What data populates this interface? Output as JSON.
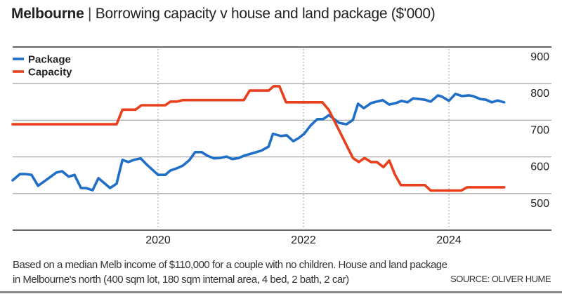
{
  "title": {
    "bold": "Melbourne",
    "separator": "|",
    "text": "Borrowing capacity v house and land package ($'000)"
  },
  "footnote": {
    "line1": "Based on a median Melb income of $110,000 for a couple with no children. House and land package",
    "line2": "in Melbourne's north (400 sqm lot, 180 sqm internal area, 4 bed, 2 bath, 2 car)",
    "source": "SOURCE: OLIVER HUME"
  },
  "chart_data": {
    "type": "line",
    "title": "Melbourne | Borrowing capacity v house and land package ($'000)",
    "xlim": [
      2018.0,
      2024.95
    ],
    "ylim": [
      400,
      900
    ],
    "x_ticks": [
      2020,
      2022,
      2024
    ],
    "x_tick_labels": [
      "2020",
      "2022",
      "2024"
    ],
    "y_ticks": [
      900,
      800,
      700,
      600,
      500
    ],
    "y_tick_labels": [
      "900",
      "800",
      "700",
      "600",
      "500"
    ],
    "y_axis_side": "right",
    "grid": "horizontal solid, vertical dotted at year ticks",
    "legend": "top-left",
    "series": [
      {
        "name": "Package",
        "color": "#1f6fc8",
        "x": [
          2018.0,
          2018.1,
          2018.18,
          2018.26,
          2018.35,
          2018.51,
          2018.6,
          2018.68,
          2018.77,
          2018.85,
          2018.94,
          2019.01,
          2019.1,
          2019.18,
          2019.34,
          2019.43,
          2019.51,
          2019.59,
          2019.67,
          2019.76,
          2019.86,
          2020.0,
          2020.1,
          2020.17,
          2020.26,
          2020.34,
          2020.43,
          2020.51,
          2020.6,
          2020.68,
          2020.77,
          2020.85,
          2020.94,
          2021.02,
          2021.11,
          2021.18,
          2021.42,
          2021.52,
          2021.58,
          2021.69,
          2021.77,
          2021.86,
          2021.93,
          2022.01,
          2022.1,
          2022.19,
          2022.27,
          2022.35,
          2022.49,
          2022.59,
          2022.68,
          2022.75,
          2022.83,
          2022.93,
          2023.01,
          2023.09,
          2023.18,
          2023.27,
          2023.35,
          2023.43,
          2023.51,
          2023.59,
          2023.67,
          2023.75,
          2023.85,
          2023.91,
          2024.0,
          2024.09,
          2024.18,
          2024.27,
          2024.33,
          2024.43,
          2024.51,
          2024.59,
          2024.67,
          2024.76
        ],
        "y": [
          536,
          553,
          553,
          551,
          521,
          544,
          557,
          561,
          546,
          551,
          515,
          515,
          509,
          542,
          515,
          527,
          592,
          586,
          592,
          596,
          576,
          551,
          551,
          563,
          569,
          576,
          591,
          613,
          613,
          603,
          596,
          597,
          601,
          594,
          597,
          603,
          617,
          628,
          663,
          657,
          659,
          643,
          651,
          663,
          686,
          703,
          703,
          714,
          693,
          689,
          701,
          745,
          733,
          747,
          751,
          755,
          743,
          747,
          753,
          749,
          760,
          758,
          756,
          751,
          768,
          764,
          753,
          772,
          766,
          768,
          766,
          758,
          756,
          749,
          754,
          749
        ]
      },
      {
        "name": "Capacity",
        "color": "#e8401c",
        "x": [
          2018.0,
          2019.43,
          2019.51,
          2019.69,
          2019.77,
          2020.1,
          2020.17,
          2020.26,
          2020.34,
          2021.18,
          2021.26,
          2021.52,
          2021.59,
          2021.67,
          2021.76,
          2022.26,
          2022.35,
          2022.68,
          2022.76,
          2022.84,
          2022.93,
          2023.01,
          2023.1,
          2023.18,
          2023.26,
          2023.34,
          2023.67,
          2023.75,
          2024.17,
          2024.25,
          2024.76
        ],
        "y": [
          689,
          689,
          729,
          729,
          741,
          741,
          751,
          751,
          755,
          755,
          781,
          781,
          793,
          793,
          749,
          749,
          728,
          597,
          586,
          597,
          586,
          586,
          572,
          590,
          551,
          523,
          523,
          508,
          508,
          517,
          517
        ]
      }
    ]
  }
}
